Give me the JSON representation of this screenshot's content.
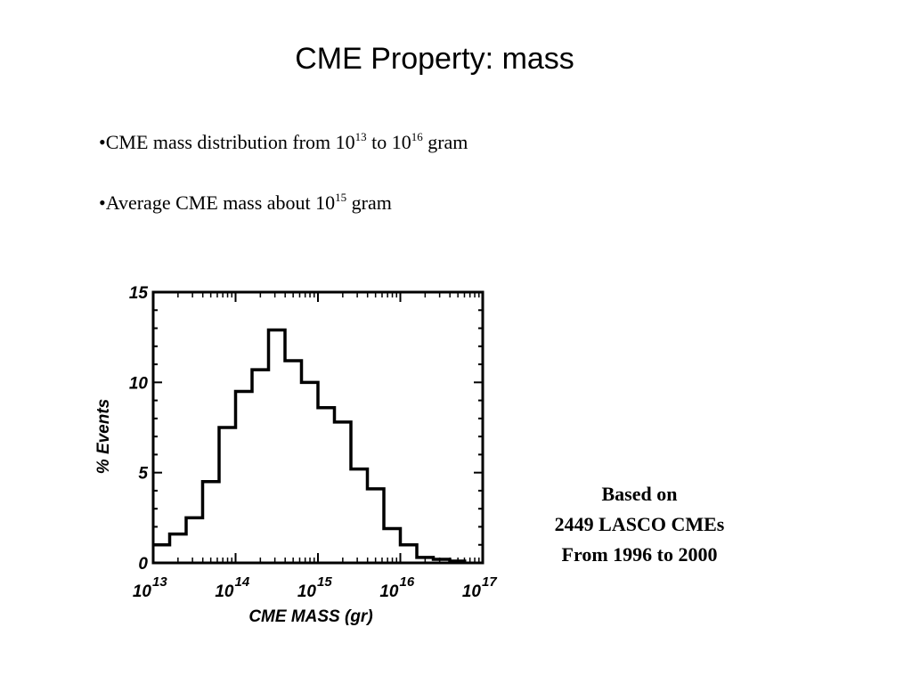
{
  "title": "CME Property: mass",
  "bullets": [
    {
      "prefix": "•CME mass distribution from 10",
      "sup1": "13",
      "mid": " to 10",
      "sup2": "16",
      "suffix": " gram"
    },
    {
      "prefix": "•Average CME mass about 10",
      "sup1": "15",
      "suffix": " gram"
    }
  ],
  "note": {
    "line1": "Based on",
    "line2": "2449 LASCO CMEs",
    "line3": "From 1996 to 2000"
  },
  "chart_data": {
    "type": "bar",
    "title": "",
    "xlabel": "CME MASS (gr)",
    "ylabel": "% Events",
    "xscale": "log",
    "xlim_exponent": [
      13,
      17
    ],
    "x_tick_labels": [
      {
        "base": "10",
        "exp": "13"
      },
      {
        "base": "10",
        "exp": "14"
      },
      {
        "base": "10",
        "exp": "15"
      },
      {
        "base": "10",
        "exp": "16"
      },
      {
        "base": "10",
        "exp": "17"
      }
    ],
    "ylim": [
      0,
      15
    ],
    "y_ticks": [
      0,
      5,
      10,
      15
    ],
    "y_tick_labels": [
      "0",
      "5",
      "10",
      "15"
    ],
    "bin_width_log10": 0.2,
    "bin_start_log10": [
      13.0,
      13.2,
      13.4,
      13.6,
      13.8,
      14.0,
      14.2,
      14.4,
      14.6,
      14.8,
      15.0,
      15.2,
      15.4,
      15.6,
      15.8,
      16.0,
      16.2,
      16.4,
      16.6
    ],
    "values": [
      1.0,
      1.6,
      2.5,
      4.5,
      7.5,
      9.5,
      10.7,
      12.9,
      11.2,
      10.0,
      8.6,
      7.8,
      5.2,
      4.1,
      1.9,
      1.0,
      0.3,
      0.2,
      0.1
    ],
    "histogram_style": "step",
    "grid": false,
    "legend": "none"
  }
}
